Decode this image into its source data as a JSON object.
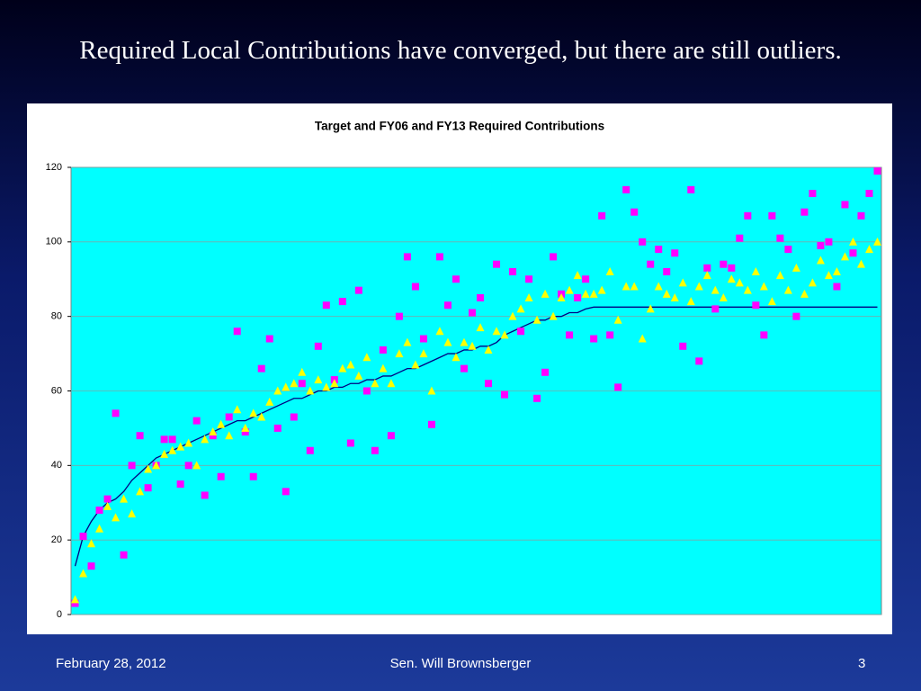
{
  "slide": {
    "heading": "Required Local Contributions have converged, but there are still outliers.",
    "footer_left": "February 28, 2012",
    "footer_center": "Sen. Will Brownsberger",
    "footer_right": "3"
  },
  "chart_data": {
    "type": "scatter",
    "title": "Target and FY06 and FY13 Required Contributions",
    "ylim": [
      0,
      120
    ],
    "yticks": [
      0,
      20,
      40,
      60,
      80,
      100,
      120
    ],
    "grid": true,
    "plot_background": "#00ffff",
    "series": [
      {
        "color": "#000080",
        "marker": "line",
        "values": [
          13,
          21,
          25,
          28,
          30,
          31,
          33,
          36,
          38,
          40,
          42,
          43,
          44,
          45,
          46,
          47,
          48,
          49,
          50,
          51,
          52,
          52,
          53,
          54,
          55,
          56,
          57,
          58,
          58,
          59,
          60,
          60,
          61,
          61,
          62,
          62,
          63,
          63,
          64,
          64,
          65,
          66,
          66,
          67,
          68,
          69,
          70,
          70,
          71,
          71,
          72,
          72,
          73,
          75,
          76,
          77,
          78,
          79,
          79,
          80,
          80,
          81,
          81,
          82,
          82.5,
          82.5,
          82.5,
          82.5,
          82.5,
          82.5,
          82.5,
          82.5,
          82.5,
          82.5,
          82.5,
          82.5,
          82.5,
          82.5,
          82.5,
          82.5,
          82.5,
          82.5,
          82.5,
          82.5,
          82.5,
          82.5,
          82.5,
          82.5,
          82.5,
          82.5,
          82.5,
          82.5,
          82.5,
          82.5,
          82.5,
          82.5,
          82.5,
          82.5,
          82.5,
          82.5
        ]
      },
      {
        "color": "#ff00ff",
        "marker": "square",
        "values": [
          3,
          21,
          13,
          28,
          31,
          54,
          16,
          40,
          48,
          34,
          40,
          47,
          47,
          35,
          40,
          52,
          32,
          48,
          37,
          53,
          76,
          49,
          37,
          66,
          74,
          50,
          33,
          53,
          62,
          44,
          72,
          83,
          63,
          84,
          46,
          87,
          60,
          44,
          71,
          48,
          80,
          96,
          88,
          74,
          51,
          96,
          83,
          90,
          66,
          81,
          85,
          62,
          94,
          59,
          92,
          76,
          90,
          58,
          65,
          96,
          86,
          75,
          85,
          90,
          74,
          107,
          75,
          61,
          114,
          108,
          100,
          94,
          98,
          92,
          97,
          72,
          114,
          68,
          93,
          82,
          94,
          93,
          101,
          107,
          83,
          75,
          107,
          101,
          98,
          80,
          108,
          113,
          99,
          100,
          88,
          110,
          97,
          107,
          113,
          119
        ]
      },
      {
        "color": "#ffff00",
        "marker": "triangle",
        "values": [
          4,
          11,
          19,
          23,
          29,
          26,
          31,
          27,
          33,
          39,
          40,
          43,
          44,
          45,
          46,
          40,
          47,
          49,
          51,
          48,
          55,
          50,
          54,
          53,
          57,
          60,
          61,
          62,
          65,
          60,
          63,
          61,
          62,
          66,
          67,
          64,
          69,
          62,
          66,
          62,
          70,
          73,
          67,
          70,
          60,
          76,
          73,
          69,
          73,
          72,
          77,
          71,
          76,
          75,
          80,
          82,
          85,
          79,
          86,
          80,
          85,
          87,
          91,
          86,
          86,
          87,
          92,
          79,
          88,
          88,
          74,
          82,
          88,
          86,
          85,
          89,
          84,
          88,
          91,
          87,
          85,
          90,
          89,
          87,
          92,
          88,
          84,
          91,
          87,
          93,
          86,
          89,
          95,
          91,
          92,
          96,
          100,
          94,
          98,
          100
        ]
      }
    ]
  }
}
